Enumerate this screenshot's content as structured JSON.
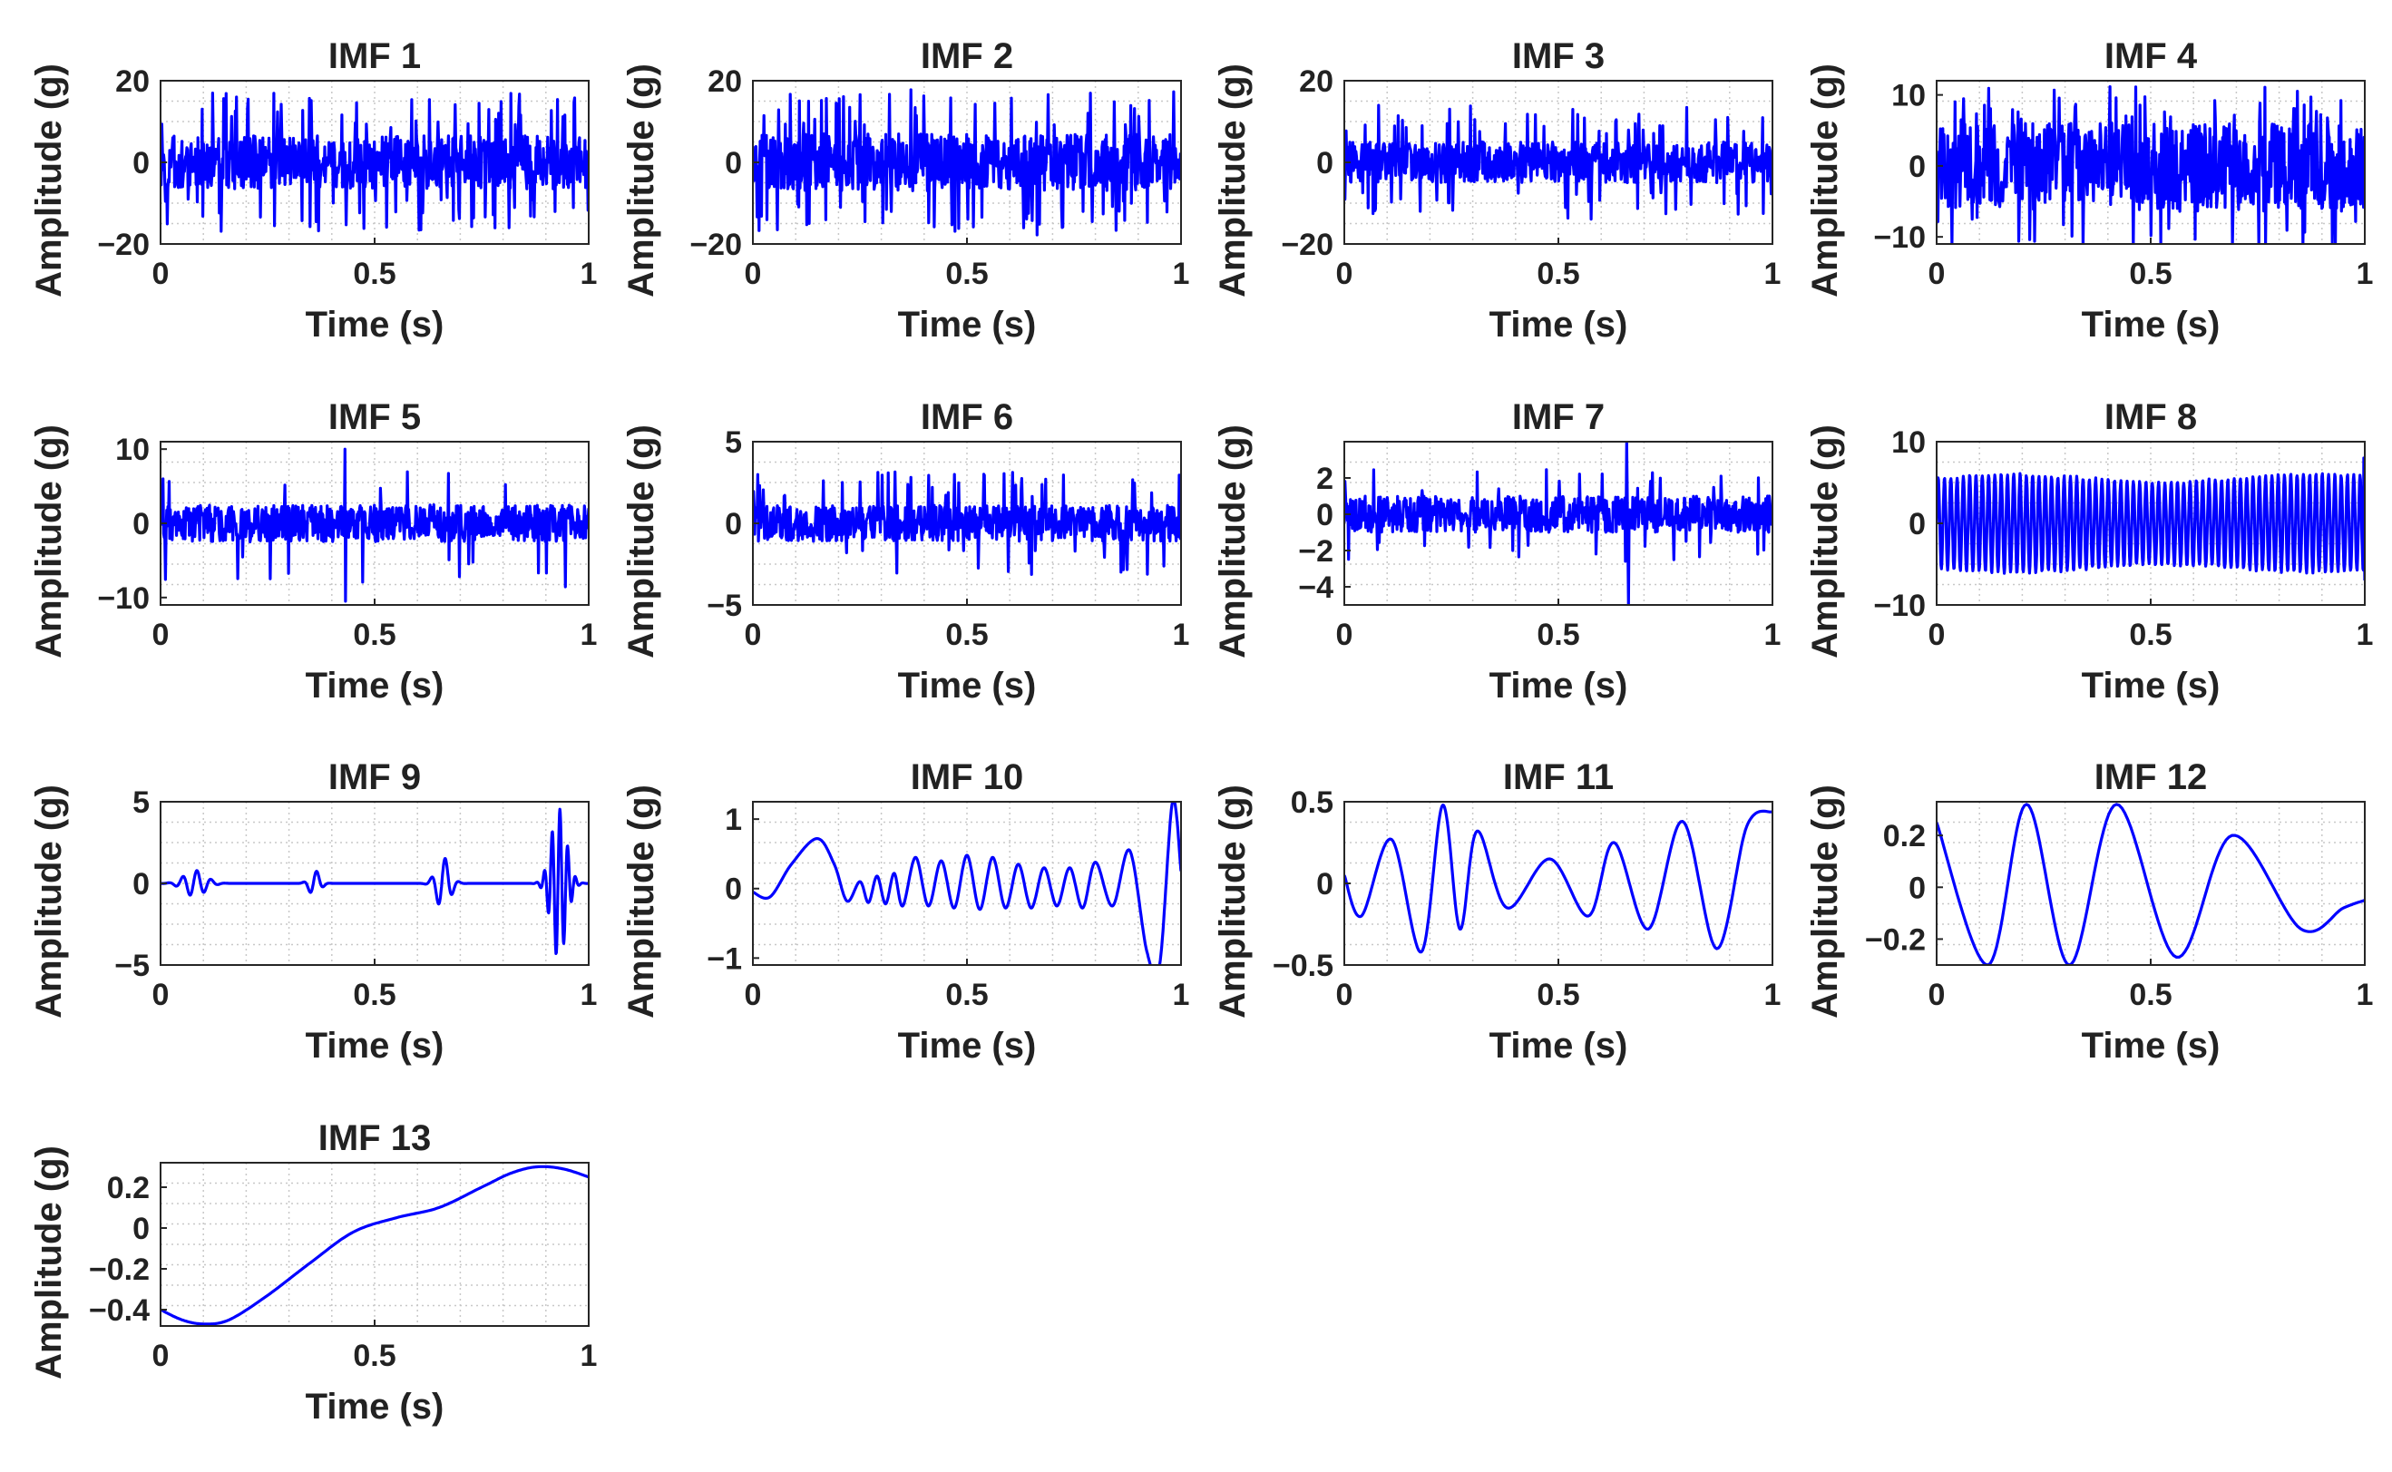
{
  "figure": {
    "x_label": "Time (s)",
    "y_label": "Amplitude (g)"
  },
  "style": {
    "line_color": "#0000ff",
    "grid_color": "#c8c8c8",
    "axis_color": "#262626",
    "background": "#ffffff"
  },
  "chart_data": [
    {
      "type": "line",
      "title": "IMF 1",
      "xlabel": "Time (s)",
      "ylabel": "Amplitude (g)",
      "xlim": [
        0,
        1
      ],
      "ylim": [
        -20,
        20
      ],
      "xticks": [
        0,
        0.5,
        1
      ],
      "xtick_labels": [
        "0",
        "0.5",
        "1"
      ],
      "yticks": [
        20,
        0,
        -20
      ],
      "ytick_labels": [
        "20",
        "0",
        "−20"
      ],
      "grid": true,
      "signal": {
        "kind": "noise",
        "base": 6.5,
        "spike_max": 17,
        "spike_prob": 0.1,
        "samples": 700,
        "seed": 11
      }
    },
    {
      "type": "line",
      "title": "IMF 2",
      "xlabel": "Time (s)",
      "ylabel": "Amplitude (g)",
      "xlim": [
        0,
        1
      ],
      "ylim": [
        -20,
        20
      ],
      "xticks": [
        0,
        0.5,
        1
      ],
      "xtick_labels": [
        "0",
        "0.5",
        "1"
      ],
      "yticks": [
        20,
        0,
        -20
      ],
      "ytick_labels": [
        "20",
        "0",
        "−20"
      ],
      "grid": true,
      "signal": {
        "kind": "noise",
        "base": 7,
        "spike_max": 18,
        "spike_prob": 0.1,
        "samples": 700,
        "seed": 23
      }
    },
    {
      "type": "line",
      "title": "IMF 3",
      "xlabel": "Time (s)",
      "ylabel": "Amplitude (g)",
      "xlim": [
        0,
        1
      ],
      "ylim": [
        -20,
        20
      ],
      "xticks": [
        0,
        0.5,
        1
      ],
      "xtick_labels": [
        "0",
        "0.5",
        "1"
      ],
      "yticks": [
        20,
        0,
        -20
      ],
      "ytick_labels": [
        "20",
        "0",
        "−20"
      ],
      "grid": true,
      "signal": {
        "kind": "noise",
        "base": 5,
        "spike_max": 14,
        "spike_prob": 0.08,
        "samples": 700,
        "seed": 37
      }
    },
    {
      "type": "line",
      "title": "IMF 4",
      "xlabel": "Time (s)",
      "ylabel": "Amplitude (g)",
      "xlim": [
        0,
        1
      ],
      "ylim": [
        -11,
        12
      ],
      "xticks": [
        0,
        0.5,
        1
      ],
      "xtick_labels": [
        "0",
        "0.5",
        "1"
      ],
      "yticks": [
        10,
        0,
        -10
      ],
      "ytick_labels": [
        "10",
        "0",
        "−10"
      ],
      "grid": true,
      "signal": {
        "kind": "noise",
        "base": 6,
        "spike_max": 11.5,
        "spike_prob": 0.12,
        "samples": 700,
        "seed": 41
      }
    },
    {
      "type": "line",
      "title": "IMF 5",
      "xlabel": "Time (s)",
      "ylabel": "Amplitude (g)",
      "xlim": [
        0,
        1
      ],
      "ylim": [
        -11,
        11
      ],
      "xticks": [
        0,
        0.5,
        1
      ],
      "xtick_labels": [
        "0",
        "0.5",
        "1"
      ],
      "yticks": [
        10,
        0,
        -10
      ],
      "ytick_labels": [
        "10",
        "0",
        "−10"
      ],
      "grid": true,
      "signal": {
        "kind": "noise",
        "base": 2.5,
        "spike_max": 9,
        "spike_prob": 0.05,
        "samples": 700,
        "seed": 53,
        "events": [
          {
            "t": 0.43,
            "v": 10
          },
          {
            "t": 0.432,
            "v": -10.5
          }
        ]
      }
    },
    {
      "type": "line",
      "title": "IMF 6",
      "xlabel": "Time (s)",
      "ylabel": "Amplitude (g)",
      "xlim": [
        0,
        1
      ],
      "ylim": [
        -5,
        5
      ],
      "xticks": [
        0,
        0.5,
        1
      ],
      "xtick_labels": [
        "0",
        "0.5",
        "1"
      ],
      "yticks": [
        5,
        0,
        -5
      ],
      "ytick_labels": [
        "5",
        "0",
        "−5"
      ],
      "grid": true,
      "signal": {
        "kind": "noise",
        "base": 1.1,
        "spike_max": 3.2,
        "spike_prob": 0.06,
        "samples": 700,
        "seed": 67
      }
    },
    {
      "type": "line",
      "title": "IMF 7",
      "xlabel": "Time (s)",
      "ylabel": "Amplitude (g)",
      "xlim": [
        0,
        1
      ],
      "ylim": [
        -5,
        4
      ],
      "xticks": [
        0,
        0.5,
        1
      ],
      "xtick_labels": [
        "0",
        "0.5",
        "1"
      ],
      "yticks": [
        2,
        0,
        -2,
        -4
      ],
      "ytick_labels": [
        "2",
        "0",
        "−2",
        "−4"
      ],
      "grid": true,
      "signal": {
        "kind": "noise",
        "base": 1.0,
        "spike_max": 2.6,
        "spike_prob": 0.06,
        "samples": 700,
        "seed": 79,
        "events": [
          {
            "t": 0.66,
            "v": 4
          },
          {
            "t": 0.664,
            "v": -5
          }
        ]
      }
    },
    {
      "type": "line",
      "title": "IMF 8",
      "xlabel": "Time (s)",
      "ylabel": "Amplitude (g)",
      "xlim": [
        0,
        1
      ],
      "ylim": [
        -10,
        10
      ],
      "xticks": [
        0,
        0.5,
        1
      ],
      "xtick_labels": [
        "0",
        "0.5",
        "1"
      ],
      "yticks": [
        10,
        0,
        -10
      ],
      "ytick_labels": [
        "10",
        "0",
        "−10"
      ],
      "grid": true,
      "signal": {
        "kind": "osc",
        "amp": 6,
        "cycles": 68,
        "samples": 900,
        "seed": 83
      }
    },
    {
      "type": "line",
      "title": "IMF 9",
      "xlabel": "Time (s)",
      "ylabel": "Amplitude (g)",
      "xlim": [
        0,
        1
      ],
      "ylim": [
        -5,
        5
      ],
      "xticks": [
        0,
        0.5,
        1
      ],
      "xtick_labels": [
        "0",
        "0.5",
        "1"
      ],
      "yticks": [
        5,
        0,
        -5
      ],
      "ytick_labels": [
        "5",
        "0",
        "−5"
      ],
      "grid": true,
      "signal": {
        "kind": "bursts",
        "freq": 30,
        "samples": 1100,
        "bursts": [
          {
            "c": 0.08,
            "w": 0.07,
            "a": 0.8
          },
          {
            "c": 0.36,
            "w": 0.035,
            "a": 0.8
          },
          {
            "c": 0.66,
            "w": 0.045,
            "a": 1.6
          },
          {
            "c": 0.93,
            "w": 0.05,
            "a": 4.6
          }
        ]
      }
    },
    {
      "type": "line",
      "title": "IMF 10",
      "xlabel": "Time (s)",
      "ylabel": "Amplitude (g)",
      "xlim": [
        0,
        1
      ],
      "ylim": [
        -1.1,
        1.25
      ],
      "xticks": [
        0,
        0.5,
        1
      ],
      "xtick_labels": [
        "0",
        "0.5",
        "1"
      ],
      "yticks": [
        1,
        0,
        -1
      ],
      "ytick_labels": [
        "1",
        "0",
        "−1"
      ],
      "grid": true,
      "signal": {
        "kind": "points",
        "smooth": true,
        "x": [
          0,
          0.04,
          0.09,
          0.15,
          0.19,
          0.22,
          0.25,
          0.27,
          0.29,
          0.31,
          0.33,
          0.35,
          0.38,
          0.41,
          0.44,
          0.47,
          0.5,
          0.53,
          0.56,
          0.59,
          0.62,
          0.65,
          0.68,
          0.71,
          0.74,
          0.77,
          0.8,
          0.84,
          0.88,
          0.92,
          0.95,
          0.98,
          1.0
        ],
        "y": [
          -0.05,
          -0.12,
          0.35,
          0.72,
          0.35,
          -0.18,
          0.1,
          -0.2,
          0.18,
          -0.22,
          0.22,
          -0.25,
          0.45,
          -0.25,
          0.4,
          -0.28,
          0.48,
          -0.3,
          0.45,
          -0.28,
          0.35,
          -0.28,
          0.3,
          -0.25,
          0.3,
          -0.28,
          0.38,
          -0.25,
          0.55,
          -0.9,
          -1.1,
          1.25,
          0.25
        ]
      }
    },
    {
      "type": "line",
      "title": "IMF 11",
      "xlabel": "Time (s)",
      "ylabel": "Amplitude (g)",
      "xlim": [
        0,
        1
      ],
      "ylim": [
        -0.5,
        0.5
      ],
      "xticks": [
        0,
        0.5,
        1
      ],
      "xtick_labels": [
        "0",
        "0.5",
        "1"
      ],
      "yticks": [
        0.5,
        0,
        -0.5
      ],
      "ytick_labels": [
        "0.5",
        "0",
        "−0.5"
      ],
      "grid": true,
      "signal": {
        "kind": "points",
        "smooth": true,
        "x": [
          0,
          0.04,
          0.11,
          0.18,
          0.23,
          0.27,
          0.31,
          0.38,
          0.48,
          0.57,
          0.63,
          0.71,
          0.79,
          0.87,
          0.94,
          1.0
        ],
        "y": [
          0.05,
          -0.2,
          0.27,
          -0.42,
          0.48,
          -0.28,
          0.32,
          -0.15,
          0.15,
          -0.2,
          0.25,
          -0.28,
          0.38,
          -0.4,
          0.35,
          0.44
        ]
      }
    },
    {
      "type": "line",
      "title": "IMF 12",
      "xlabel": "Time (s)",
      "ylabel": "Amplitude (g)",
      "xlim": [
        0,
        1
      ],
      "ylim": [
        -0.3,
        0.33
      ],
      "xticks": [
        0,
        0.5,
        1
      ],
      "xtick_labels": [
        "0",
        "0.5",
        "1"
      ],
      "yticks": [
        0.2,
        0,
        -0.2
      ],
      "ytick_labels": [
        "0.2",
        "0",
        "−0.2"
      ],
      "grid": true,
      "signal": {
        "kind": "points",
        "smooth": true,
        "x": [
          0,
          0.12,
          0.21,
          0.31,
          0.42,
          0.56,
          0.69,
          0.85,
          0.95,
          1.0
        ],
        "y": [
          0.25,
          -0.3,
          0.32,
          -0.3,
          0.32,
          -0.27,
          0.2,
          -0.16,
          -0.08,
          -0.05
        ]
      }
    },
    {
      "type": "line",
      "title": "IMF 13",
      "xlabel": "Time (s)",
      "ylabel": "Amplitude (g)",
      "xlim": [
        0,
        1
      ],
      "ylim": [
        -0.48,
        0.32
      ],
      "xticks": [
        0,
        0.5,
        1
      ],
      "xtick_labels": [
        "0",
        "0.5",
        "1"
      ],
      "yticks": [
        0.2,
        0,
        -0.2,
        -0.4
      ],
      "ytick_labels": [
        "0.2",
        "0",
        "−0.2",
        "−0.4"
      ],
      "grid": true,
      "signal": {
        "kind": "points",
        "smooth": true,
        "x": [
          0,
          0.05,
          0.1,
          0.16,
          0.25,
          0.35,
          0.45,
          0.55,
          0.65,
          0.75,
          0.82,
          0.88,
          0.94,
          1.0
        ],
        "y": [
          -0.4,
          -0.45,
          -0.47,
          -0.45,
          -0.33,
          -0.17,
          -0.02,
          0.05,
          0.1,
          0.2,
          0.27,
          0.3,
          0.29,
          0.25
        ]
      }
    }
  ]
}
